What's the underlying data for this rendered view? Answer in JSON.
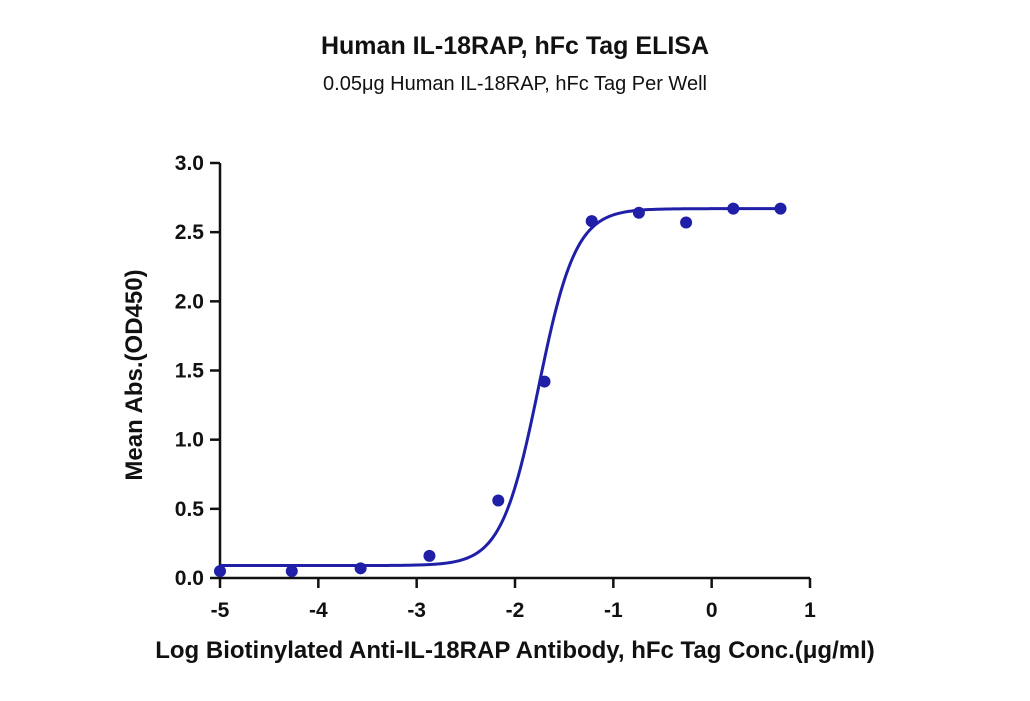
{
  "colors": {
    "series": "#1f1fa8",
    "axis": "#111111",
    "text": "#111111",
    "background": "#ffffff"
  },
  "chart_data": {
    "type": "scatter",
    "title": "Human IL-18RAP, hFc Tag ELISA",
    "subtitle": "0.05μg Human IL-18RAP, hFc Tag Per Well",
    "xlabel": "Log Biotinylated Anti-IL-18RAP Antibody, hFc Tag Conc.(μg/ml)",
    "ylabel": "Mean Abs.(OD450)",
    "xlim": [
      -5,
      1
    ],
    "ylim": [
      0,
      3.0
    ],
    "x_ticks": [
      "-5",
      "-4",
      "-3",
      "-2",
      "-1",
      "0",
      "1"
    ],
    "y_ticks": [
      "0.0",
      "0.5",
      "1.0",
      "1.5",
      "2.0",
      "2.5",
      "3.0"
    ],
    "grid": false,
    "legend": "none",
    "series": [
      {
        "points": [
          {
            "x": -5.0,
            "y": 0.05
          },
          {
            "x": -4.27,
            "y": 0.05
          },
          {
            "x": -3.57,
            "y": 0.07
          },
          {
            "x": -2.87,
            "y": 0.16
          },
          {
            "x": -2.17,
            "y": 0.56
          },
          {
            "x": -1.7,
            "y": 1.42
          },
          {
            "x": -1.22,
            "y": 2.58
          },
          {
            "x": -0.74,
            "y": 2.64
          },
          {
            "x": -0.26,
            "y": 2.57
          },
          {
            "x": 0.22,
            "y": 2.67
          },
          {
            "x": 0.7,
            "y": 2.67
          }
        ],
        "fit": {
          "model": "4PL",
          "bottom": 0.09,
          "top": 2.67,
          "logEC50": -1.76,
          "hill": 2.3,
          "x_range": [
            -5.0,
            0.7
          ]
        }
      }
    ]
  }
}
